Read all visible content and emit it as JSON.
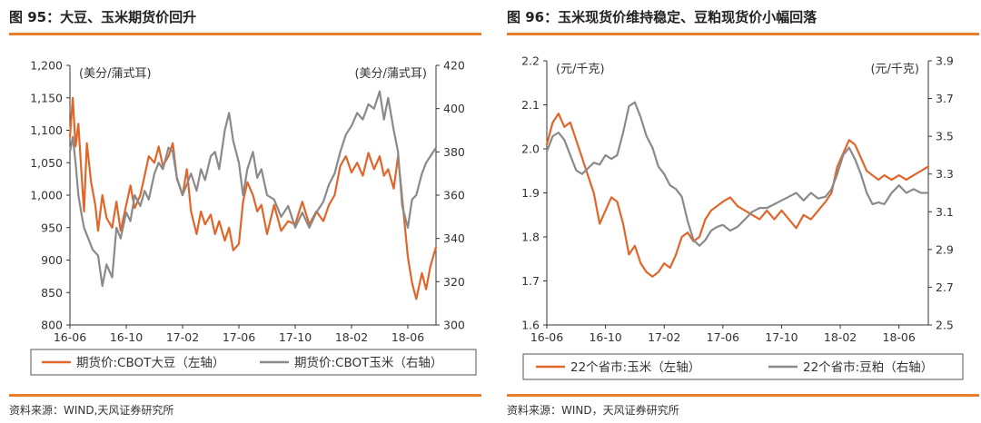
{
  "charts": {
    "left": {
      "title": "图 95：大豆、玉米期货价回升",
      "source": "资料来源：WIND,天风证券研究所"
    },
    "right": {
      "title": "图 96：玉米现货价维持稳定、豆粕现货价小幅回落",
      "source": "资料来源：WIND，天风证券研究所"
    }
  },
  "chart_data": [
    {
      "type": "line",
      "title": "图 95：大豆、玉米期货价回升",
      "xlabel": "",
      "ylabel_left": "(美分/蒲式耳)",
      "ylabel_right": "(美分/蒲式耳)",
      "ylim_left": [
        800,
        1200
      ],
      "ylim_right": [
        300,
        420
      ],
      "yticks_left": [
        "1,200",
        "1,150",
        "1,100",
        "1,050",
        "1,000",
        "950",
        "900",
        "850",
        "800"
      ],
      "yticks_right": [
        "420",
        "400",
        "380",
        "360",
        "340",
        "320",
        "300"
      ],
      "xticks": [
        "16-06",
        "16-10",
        "17-02",
        "17-06",
        "17-10",
        "18-02",
        "18-06"
      ],
      "x_range_months": [
        0,
        26
      ],
      "grid": false,
      "legend_position": "bottom",
      "series": [
        {
          "name": "期货价:CBOT大豆（左轴）",
          "axis": "left",
          "color": "#e0662a",
          "x": [
            0,
            0.2,
            0.4,
            0.6,
            0.8,
            1.0,
            1.2,
            1.5,
            1.8,
            2.0,
            2.3,
            2.6,
            3.0,
            3.3,
            3.6,
            4.0,
            4.3,
            4.6,
            5.0,
            5.3,
            5.6,
            6.0,
            6.3,
            6.6,
            7.0,
            7.3,
            7.6,
            8.0,
            8.3,
            8.6,
            9.0,
            9.3,
            9.6,
            10.0,
            10.3,
            10.6,
            11.0,
            11.3,
            11.6,
            12.0,
            12.3,
            12.6,
            13.0,
            13.3,
            13.6,
            14.0,
            14.5,
            15.0,
            15.5,
            16.0,
            16.5,
            17.0,
            17.5,
            18.0,
            18.4,
            18.8,
            19.2,
            19.6,
            20.0,
            20.4,
            20.8,
            21.2,
            21.6,
            22.0,
            22.3,
            22.6,
            23.0,
            23.3,
            23.6,
            24.0,
            24.3,
            24.6,
            25.0,
            25.3,
            25.6,
            26.0
          ],
          "values": [
            1090,
            1150,
            1075,
            1110,
            1040,
            975,
            1080,
            1020,
            985,
            945,
            1000,
            965,
            950,
            990,
            945,
            985,
            1015,
            980,
            1000,
            1030,
            1060,
            1050,
            1075,
            1045,
            1060,
            1080,
            1025,
            1000,
            1040,
            975,
            940,
            975,
            955,
            970,
            940,
            960,
            930,
            950,
            915,
            925,
            990,
            1020,
            1000,
            975,
            985,
            940,
            985,
            945,
            960,
            955,
            990,
            955,
            975,
            960,
            985,
            1000,
            1045,
            1060,
            1035,
            1050,
            1030,
            1065,
            1040,
            1060,
            1030,
            1040,
            1010,
            1060,
            995,
            905,
            865,
            840,
            880,
            855,
            890,
            920
          ]
        },
        {
          "name": "期货价:CBOT玉米（右轴）",
          "axis": "right",
          "color": "#8a8a8a",
          "x": [
            0,
            0.2,
            0.4,
            0.6,
            0.8,
            1.0,
            1.3,
            1.6,
            2.0,
            2.3,
            2.6,
            3.0,
            3.3,
            3.6,
            4.0,
            4.3,
            4.6,
            5.0,
            5.3,
            5.6,
            6.0,
            6.3,
            6.6,
            7.0,
            7.3,
            7.6,
            8.0,
            8.3,
            8.6,
            9.0,
            9.3,
            9.6,
            10.0,
            10.3,
            10.6,
            11.0,
            11.3,
            11.6,
            12.0,
            12.3,
            12.6,
            13.0,
            13.3,
            13.6,
            14.0,
            14.5,
            15.0,
            15.5,
            16.0,
            16.5,
            17.0,
            17.5,
            18.0,
            18.4,
            18.8,
            19.2,
            19.6,
            20.0,
            20.4,
            20.8,
            21.2,
            21.6,
            22.0,
            22.3,
            22.6,
            23.0,
            23.3,
            23.6,
            24.0,
            24.3,
            24.6,
            25.0,
            25.3,
            25.6,
            26.0
          ],
          "values": [
            380,
            387,
            375,
            360,
            352,
            345,
            340,
            335,
            332,
            318,
            328,
            322,
            345,
            340,
            352,
            348,
            360,
            355,
            362,
            358,
            370,
            375,
            372,
            382,
            380,
            368,
            360,
            365,
            370,
            362,
            372,
            367,
            378,
            380,
            372,
            390,
            398,
            385,
            375,
            360,
            372,
            380,
            368,
            372,
            360,
            358,
            350,
            355,
            345,
            352,
            345,
            352,
            357,
            365,
            370,
            380,
            388,
            392,
            398,
            395,
            402,
            400,
            408,
            395,
            405,
            390,
            380,
            355,
            345,
            358,
            360,
            370,
            375,
            378,
            382
          ]
        }
      ]
    },
    {
      "type": "line",
      "title": "图 96：玉米现货价维持稳定、豆粕现货价小幅回落",
      "xlabel": "",
      "ylabel_left": "(元/千克)",
      "ylabel_right": "(元/千克)",
      "ylim_left": [
        1.6,
        2.2
      ],
      "ylim_right": [
        2.5,
        3.9
      ],
      "yticks_left": [
        "2.2",
        "2.1",
        "2.0",
        "1.9",
        "1.8",
        "1.7",
        "1.6"
      ],
      "yticks_right": [
        "3.9",
        "3.7",
        "3.5",
        "3.3",
        "3.1",
        "2.9",
        "2.7",
        "2.5"
      ],
      "xticks": [
        "16-06",
        "16-10",
        "17-02",
        "17-06",
        "17-10",
        "18-02",
        "18-06"
      ],
      "x_range_months": [
        0,
        26
      ],
      "grid": false,
      "legend_position": "bottom",
      "series": [
        {
          "name": "22个省市:玉米（左轴）",
          "axis": "left",
          "color": "#e0662a",
          "x": [
            0,
            0.4,
            0.8,
            1.2,
            1.6,
            2.0,
            2.4,
            2.8,
            3.2,
            3.6,
            4.0,
            4.4,
            4.8,
            5.2,
            5.6,
            6.0,
            6.4,
            6.8,
            7.2,
            7.6,
            8.0,
            8.4,
            8.8,
            9.2,
            9.6,
            10.0,
            10.4,
            10.8,
            11.2,
            11.6,
            12.0,
            12.5,
            13.0,
            13.5,
            14.0,
            14.5,
            15.0,
            15.5,
            16.0,
            16.5,
            17.0,
            17.5,
            18.0,
            18.5,
            19.0,
            19.4,
            19.8,
            20.2,
            20.6,
            21.0,
            21.4,
            21.8,
            22.2,
            22.6,
            23.0,
            23.5,
            24.0,
            24.5,
            25.0,
            25.5,
            26.0
          ],
          "values": [
            2.01,
            2.06,
            2.08,
            2.05,
            2.06,
            2.02,
            1.98,
            1.94,
            1.9,
            1.83,
            1.86,
            1.89,
            1.88,
            1.83,
            1.76,
            1.78,
            1.74,
            1.72,
            1.71,
            1.72,
            1.74,
            1.73,
            1.76,
            1.8,
            1.81,
            1.79,
            1.8,
            1.84,
            1.86,
            1.87,
            1.88,
            1.89,
            1.87,
            1.86,
            1.85,
            1.84,
            1.86,
            1.84,
            1.86,
            1.84,
            1.82,
            1.85,
            1.84,
            1.86,
            1.88,
            1.9,
            1.96,
            1.99,
            2.02,
            2.01,
            1.98,
            1.95,
            1.94,
            1.93,
            1.94,
            1.93,
            1.94,
            1.93,
            1.94,
            1.95,
            1.96
          ]
        },
        {
          "name": "22个省市:豆粕（右轴）",
          "axis": "right",
          "color": "#8a8a8a",
          "x": [
            0,
            0.4,
            0.8,
            1.2,
            1.6,
            2.0,
            2.4,
            2.8,
            3.2,
            3.6,
            4.0,
            4.4,
            4.8,
            5.2,
            5.6,
            6.0,
            6.4,
            6.8,
            7.2,
            7.6,
            8.0,
            8.4,
            8.8,
            9.2,
            9.6,
            10.0,
            10.4,
            10.8,
            11.2,
            11.6,
            12.0,
            12.5,
            13.0,
            13.5,
            14.0,
            14.5,
            15.0,
            15.5,
            16.0,
            16.5,
            17.0,
            17.5,
            18.0,
            18.5,
            19.0,
            19.4,
            19.8,
            20.2,
            20.6,
            21.0,
            21.4,
            21.8,
            22.2,
            22.6,
            23.0,
            23.5,
            24.0,
            24.5,
            25.0,
            25.5,
            26.0
          ],
          "values": [
            3.42,
            3.5,
            3.52,
            3.48,
            3.4,
            3.32,
            3.3,
            3.33,
            3.36,
            3.35,
            3.4,
            3.38,
            3.4,
            3.52,
            3.66,
            3.68,
            3.6,
            3.5,
            3.44,
            3.34,
            3.3,
            3.24,
            3.22,
            3.18,
            3.05,
            2.95,
            2.92,
            2.95,
            3.0,
            3.02,
            3.03,
            3.0,
            3.02,
            3.06,
            3.1,
            3.12,
            3.12,
            3.14,
            3.16,
            3.18,
            3.2,
            3.16,
            3.2,
            3.17,
            3.18,
            3.22,
            3.3,
            3.4,
            3.44,
            3.38,
            3.3,
            3.2,
            3.14,
            3.15,
            3.14,
            3.2,
            3.24,
            3.2,
            3.22,
            3.2,
            3.2
          ]
        }
      ]
    }
  ]
}
